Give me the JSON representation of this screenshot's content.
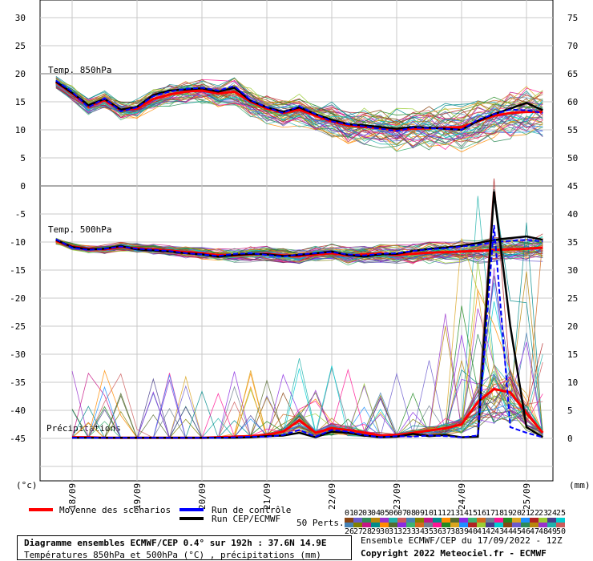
{
  "chart_data": [
    {
      "type": "line",
      "title": "Temp. 850hPa",
      "yaxis": "left",
      "ylim": [
        0,
        30
      ],
      "yticks": [
        0,
        5,
        10,
        15,
        20,
        25,
        30
      ],
      "x": [
        17.75,
        18.0,
        18.25,
        18.5,
        18.75,
        19.0,
        19.25,
        19.5,
        19.75,
        20.0,
        20.25,
        20.5,
        20.75,
        21.0,
        21.25,
        21.5,
        21.75,
        22.0,
        22.25,
        22.5,
        22.75,
        23.0,
        23.25,
        23.5,
        23.75,
        24.0,
        24.25,
        24.5,
        24.75,
        25.0,
        25.25
      ],
      "series": [
        {
          "name": "Moyenne des scénarios",
          "color": "#ff0000",
          "values": [
            18.5,
            16.5,
            14.2,
            15.3,
            13.5,
            13.8,
            15.5,
            16.3,
            16.8,
            17.0,
            16.5,
            16.8,
            15.0,
            13.8,
            13.0,
            13.6,
            12.5,
            11.5,
            10.8,
            10.5,
            10.3,
            10.0,
            10.2,
            10.3,
            10.4,
            10.5,
            11.5,
            12.5,
            13.0,
            13.2,
            13.2
          ]
        },
        {
          "name": "Run de contrôle",
          "color": "#0000ff",
          "values": [
            18.8,
            16.8,
            14.0,
            15.6,
            13.3,
            14.0,
            16.0,
            16.8,
            17.3,
            17.5,
            17.0,
            17.8,
            15.3,
            14.0,
            13.0,
            14.2,
            12.8,
            11.5,
            11.0,
            10.6,
            10.2,
            9.8,
            10.4,
            10.3,
            10.2,
            10.0,
            11.8,
            12.8,
            13.6,
            13.5,
            13.0
          ]
        },
        {
          "name": "Run CEP/ECMWF",
          "color": "#000000",
          "values": [
            18.6,
            16.6,
            14.4,
            15.5,
            13.6,
            14.1,
            16.2,
            17.0,
            17.2,
            17.4,
            16.8,
            17.5,
            15.2,
            14.0,
            13.2,
            14.0,
            12.8,
            11.8,
            11.0,
            10.8,
            10.5,
            10.2,
            10.5,
            10.4,
            10.2,
            10.0,
            11.6,
            12.8,
            13.8,
            14.8,
            13.5
          ]
        }
      ],
      "members": 50
    },
    {
      "type": "line",
      "title": "Temp. 500hPa",
      "yaxis": "left",
      "ylim": [
        -45,
        0
      ],
      "yticks": [
        0,
        -5,
        -10,
        -15,
        -20,
        -25,
        -30,
        -35,
        -40,
        -45
      ],
      "x": [
        17.75,
        18.0,
        18.25,
        18.5,
        18.75,
        19.0,
        19.25,
        19.5,
        19.75,
        20.0,
        20.25,
        20.5,
        20.75,
        21.0,
        21.25,
        21.5,
        21.75,
        22.0,
        22.25,
        22.5,
        22.75,
        23.0,
        23.25,
        23.5,
        23.75,
        24.0,
        24.25,
        24.5,
        24.75,
        25.0,
        25.25
      ],
      "series": [
        {
          "name": "Moyenne des scénarios",
          "color": "#ff0000",
          "values": [
            -9.8,
            -10.8,
            -11.2,
            -11.3,
            -10.9,
            -11.1,
            -11.3,
            -11.5,
            -11.8,
            -12.0,
            -12.3,
            -12.4,
            -12.2,
            -12.1,
            -12.4,
            -12.5,
            -12.2,
            -12.0,
            -12.4,
            -12.2,
            -12.0,
            -12.3,
            -12.1,
            -11.9,
            -11.8,
            -11.7,
            -11.6,
            -11.4,
            -11.3,
            -11.2,
            -11.0
          ]
        },
        {
          "name": "Run de contrôle",
          "color": "#0000ff",
          "values": [
            -9.5,
            -11.0,
            -11.4,
            -11.2,
            -10.8,
            -11.2,
            -11.4,
            -11.6,
            -12.0,
            -12.2,
            -12.5,
            -12.1,
            -12.0,
            -12.3,
            -12.6,
            -12.2,
            -12.0,
            -11.8,
            -12.2,
            -12.4,
            -12.1,
            -12.0,
            -11.6,
            -11.3,
            -11.1,
            -10.8,
            -10.5,
            -10.0,
            -9.8,
            -9.6,
            -9.9
          ]
        },
        {
          "name": "Run CEP/ECMWF",
          "color": "#000000",
          "values": [
            -9.6,
            -10.9,
            -11.3,
            -11.2,
            -10.7,
            -11.3,
            -11.5,
            -11.7,
            -12.0,
            -12.2,
            -12.6,
            -12.3,
            -12.1,
            -12.2,
            -12.5,
            -12.3,
            -12.0,
            -11.7,
            -12.3,
            -12.6,
            -12.2,
            -12.1,
            -11.6,
            -11.2,
            -11.0,
            -10.7,
            -10.2,
            -9.6,
            -9.3,
            -9.0,
            -9.6
          ]
        }
      ],
      "members": 50
    },
    {
      "type": "line",
      "title": "Précipitations",
      "yaxis": "right",
      "y_unit": "(mm)",
      "ylim": [
        0,
        45
      ],
      "yticks": [
        0,
        5,
        10,
        15,
        20,
        25,
        30,
        35,
        40,
        45
      ],
      "x": [
        18.0,
        18.25,
        18.5,
        18.75,
        19.0,
        19.25,
        19.5,
        19.75,
        20.0,
        20.25,
        20.5,
        20.75,
        21.0,
        21.25,
        21.5,
        21.75,
        22.0,
        22.25,
        22.5,
        22.75,
        23.0,
        23.25,
        23.5,
        23.75,
        24.0,
        24.25,
        24.5,
        24.75,
        25.0,
        25.25
      ],
      "series": [
        {
          "name": "Moyenne des scénarios",
          "color": "#ff0000",
          "values": [
            0.2,
            0.2,
            0.1,
            0.1,
            0.1,
            0.1,
            0.1,
            0.1,
            0.1,
            0.2,
            0.3,
            0.4,
            0.6,
            1.2,
            3.2,
            1.0,
            1.8,
            1.5,
            1.0,
            0.5,
            0.6,
            1.0,
            1.4,
            1.8,
            2.5,
            6.5,
            8.8,
            8.2,
            4.5,
            1.0
          ]
        },
        {
          "name": "Run de contrôle",
          "color": "#0000ff",
          "values": [
            0.1,
            0.1,
            0.1,
            0.1,
            0.1,
            0.1,
            0.1,
            0.1,
            0.1,
            0.1,
            0.2,
            0.3,
            0.3,
            0.6,
            1.5,
            0.3,
            1.5,
            1.2,
            0.6,
            0.2,
            0.4,
            0.3,
            0.5,
            0.4,
            0.2,
            0.5,
            38.0,
            2.0,
            1.0,
            0.2
          ]
        },
        {
          "name": "Run CEP/ECMWF",
          "color": "#000000",
          "values": [
            0.1,
            0.1,
            0.1,
            0.1,
            0.1,
            0.1,
            0.1,
            0.1,
            0.1,
            0.1,
            0.1,
            0.2,
            0.4,
            0.5,
            1.0,
            0.2,
            1.2,
            1.0,
            0.5,
            0.2,
            0.3,
            0.8,
            0.4,
            0.6,
            0.2,
            0.3,
            44.0,
            20.0,
            2.0,
            0.2
          ]
        }
      ],
      "members": 50
    }
  ],
  "axes": {
    "left_unit": "(°c)",
    "right_unit": "(mm)",
    "right_ticks_temp": [
      75,
      70,
      65,
      60,
      55,
      50
    ],
    "date_labels": [
      "18/09",
      "19/09",
      "20/09",
      "21/09",
      "22/09",
      "23/09",
      "24/09",
      "25/09"
    ]
  },
  "legend": {
    "mean": "Moyenne des scénarios",
    "control": "Run de contrôle",
    "oper": "Run CEP/ECMWF",
    "perts_label": "50 Perts.",
    "colors": {
      "mean": "#ff0000",
      "control": "#0000ff",
      "oper": "#000000"
    },
    "perts_top": [
      "01",
      "02",
      "03",
      "04",
      "05",
      "06",
      "07",
      "08",
      "09",
      "10",
      "11",
      "12",
      "13",
      "14",
      "15",
      "16",
      "17",
      "18",
      "19",
      "20",
      "21",
      "22",
      "23",
      "24",
      "25"
    ],
    "perts_bottom": [
      "26",
      "27",
      "28",
      "29",
      "30",
      "31",
      "32",
      "33",
      "34",
      "35",
      "36",
      "37",
      "38",
      "39",
      "40",
      "41",
      "42",
      "43",
      "44",
      "45",
      "46",
      "47",
      "48",
      "49",
      "50"
    ]
  },
  "info": {
    "title": "Diagramme ensembles ECMWF/CEP 0.4° sur 192h : 37.6N 14.9E",
    "subtitle": "Températures 850hPa et 500hPa (°C) , précipitations (mm)",
    "run": "Ensemble ECMWF/CEP du 17/09/2022 - 12Z",
    "copyright": "Copyright 2022 Meteociel.fr - ECMWF"
  }
}
